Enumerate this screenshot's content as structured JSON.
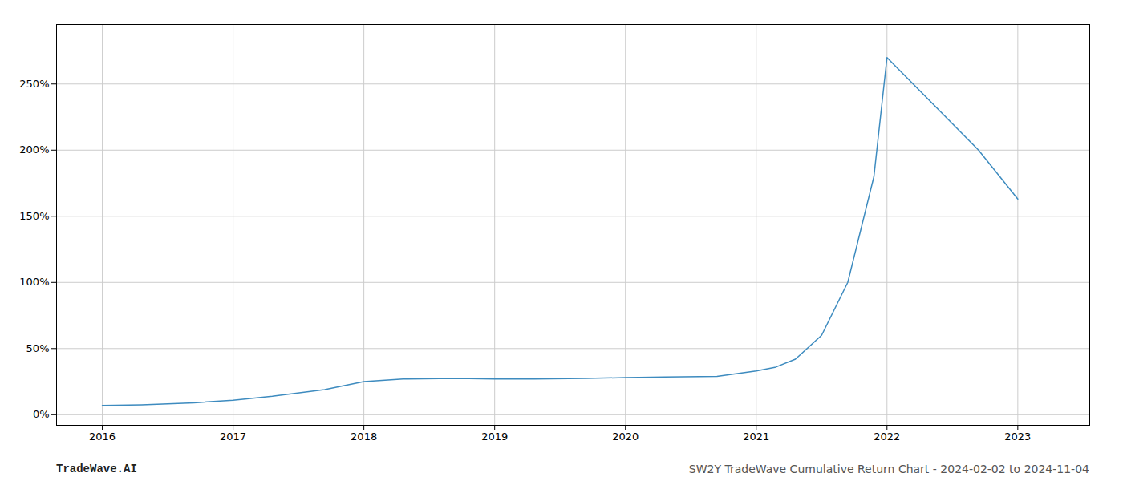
{
  "chart_data": {
    "type": "line",
    "x": [
      2016.0,
      2016.3,
      2016.7,
      2017.0,
      2017.3,
      2017.7,
      2018.0,
      2018.3,
      2018.7,
      2019.0,
      2019.3,
      2019.7,
      2020.0,
      2020.3,
      2020.7,
      2021.0,
      2021.15,
      2021.3,
      2021.5,
      2021.7,
      2021.9,
      2022.0,
      2022.15,
      2022.3,
      2022.7,
      2023.0
    ],
    "values": [
      7,
      7.5,
      9,
      11,
      14,
      19,
      25,
      27,
      27.5,
      27,
      27,
      27.5,
      28,
      28.5,
      29,
      33,
      36,
      42,
      60,
      100,
      180,
      270,
      255,
      240,
      200,
      163
    ],
    "color": "#3d8bbf",
    "xlim": [
      2015.65,
      2023.55
    ],
    "ylim": [
      -8,
      295
    ],
    "xticks": [
      2016,
      2017,
      2018,
      2019,
      2020,
      2021,
      2022,
      2023
    ],
    "yticks": [
      {
        "value": 0,
        "label": "0%"
      },
      {
        "value": 50,
        "label": "50%"
      },
      {
        "value": 100,
        "label": "100%"
      },
      {
        "value": 150,
        "label": "150%"
      },
      {
        "value": 200,
        "label": "200%"
      },
      {
        "value": 250,
        "label": "250%"
      }
    ],
    "grid": true,
    "annotations": [
      "TradeWave.AI",
      "SW2Y TradeWave Cumulative Return Chart - 2024-02-02 to 2024-11-04"
    ]
  }
}
